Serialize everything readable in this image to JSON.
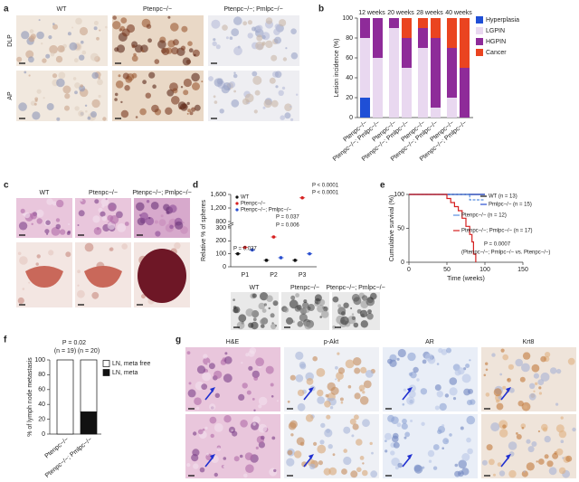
{
  "panels": {
    "letters": [
      "a",
      "b",
      "c",
      "d",
      "e",
      "f",
      "g"
    ],
    "a": {
      "columns": [
        "WT",
        "Ptenpc−/−",
        "Ptenpc−/−; Pmlpc−/−"
      ],
      "rows": [
        "DLP",
        "AP"
      ]
    },
    "c": {
      "columns": [
        "WT",
        "Ptenpc−/−",
        "Ptenpc−/−; Pmlpc−/−"
      ]
    },
    "d_images": {
      "columns": [
        "WT",
        "Ptenpc−/−",
        "Ptenpc−/−; Pmlpc−/−"
      ]
    },
    "g": {
      "columns": [
        "H&E",
        "p-Akt",
        "AR",
        "Krt8"
      ]
    }
  },
  "chart_data": [
    {
      "type": "stacked_bar",
      "ylabel": "Lesion incidence (%)",
      "groups": [
        "12 weeks",
        "20 weeks",
        "28 weeks",
        "40 weeks"
      ],
      "categories": [
        "Ptenpc−/−",
        "Ptenpc−/−; Pmlpc−/−",
        "Ptenpc−/−",
        "Ptenpc−/−; Pmlpc−/−",
        "Ptenpc−/−",
        "Ptenpc−/−; Pmlpc−/−",
        "Ptenpc−/−",
        "Ptenpc−/−; Pmlpc−/−"
      ],
      "series": [
        {
          "name": "Hyperplasia",
          "color": "#1f4fd6",
          "values": [
            20,
            0,
            0,
            0,
            0,
            0,
            0,
            0
          ]
        },
        {
          "name": "LGPIN",
          "color": "#e9d8f0",
          "values": [
            60,
            60,
            90,
            50,
            70,
            10,
            20,
            0
          ]
        },
        {
          "name": "HGPIN",
          "color": "#8e2b99",
          "values": [
            20,
            40,
            10,
            30,
            20,
            70,
            50,
            50
          ]
        },
        {
          "name": "Cancer",
          "color": "#ea4420",
          "values": [
            0,
            0,
            0,
            20,
            10,
            20,
            30,
            50
          ]
        }
      ],
      "ylim": [
        0,
        100
      ],
      "yticks": [
        0,
        20,
        40,
        60,
        80,
        100
      ],
      "legend": "right"
    },
    {
      "type": "dot",
      "ylabel": "Relative % of spheres",
      "categories": [
        "P1",
        "P2",
        "P3"
      ],
      "series": [
        {
          "name": "WT",
          "color": "#111111",
          "values": [
            100,
            50,
            50
          ]
        },
        {
          "name": "Ptenpc−/−",
          "color": "#d62020",
          "values": [
            150,
            230,
            1500
          ]
        },
        {
          "name": "Ptenpc−/−; Pmlpc−/−",
          "color": "#2a4fd0",
          "values": [
            130,
            70,
            100
          ]
        }
      ],
      "ylim": [
        0,
        1600
      ],
      "axis_break": [
        300,
        800
      ],
      "yticks": [
        0,
        100,
        200,
        300,
        800,
        {
          "value": 1200,
          "label": "1,200"
        },
        {
          "value": 1600,
          "label": "1,600"
        }
      ],
      "annotations": [
        "P = 0.037",
        "P = 0.037",
        "P = 0.006",
        "P < 0.0001",
        "P < 0.0001"
      ]
    },
    {
      "type": "line",
      "xlabel": "Time (weeks)",
      "ylabel": "Cumulative survival (%)",
      "series": [
        {
          "name": "WT (n = 13)",
          "color": "#111111",
          "x": [
            0,
            100
          ],
          "values": [
            100,
            100
          ]
        },
        {
          "name": "Pmlpc−/− (n = 15)",
          "color": "#2a4fd0",
          "x": [
            0,
            100
          ],
          "values": [
            100,
            100
          ]
        },
        {
          "name": "Ptenpc−/− (n = 12)",
          "color": "#5b8fe0",
          "x": [
            0,
            80,
            80,
            100
          ],
          "values": [
            100,
            100,
            92,
            92
          ]
        },
        {
          "name": "Ptenpc−/−; Pmlpc−/− (n = 17)",
          "color": "#d62020",
          "x": [
            0,
            50,
            50,
            55,
            55,
            60,
            60,
            65,
            65,
            70,
            70,
            75,
            75,
            80,
            80,
            83,
            83,
            85,
            85,
            88,
            88
          ],
          "values": [
            100,
            100,
            94,
            94,
            88,
            88,
            82,
            82,
            76,
            76,
            65,
            65,
            53,
            53,
            41,
            41,
            30,
            30,
            12,
            12,
            0
          ]
        }
      ],
      "xlim": [
        0,
        150
      ],
      "xticks": [
        0,
        50,
        100,
        150
      ],
      "ylim": [
        0,
        100
      ],
      "yticks": [
        0,
        50,
        100
      ],
      "annotations": [
        "P = 0.0007",
        "(Ptenpc−/−; Pmlpc−/− vs. Ptenpc−/−)"
      ]
    },
    {
      "type": "stacked_bar_small",
      "title": "P = 0.02",
      "ylabel": "% of lymph node metastasis",
      "counts": [
        "(n = 19)",
        "(n = 20)"
      ],
      "categories": [
        "Ptenpc−/−",
        "Ptenpc−/−; Pmlpc−/−"
      ],
      "series": [
        {
          "name": "LN, meta free",
          "color": "#ffffff",
          "values": [
            100,
            70
          ]
        },
        {
          "name": "LN, meta",
          "color": "#111111",
          "values": [
            0,
            30
          ]
        }
      ],
      "ylim": [
        0,
        100
      ],
      "yticks": [
        0,
        20,
        40,
        60,
        80,
        100
      ],
      "legend": "right"
    }
  ]
}
